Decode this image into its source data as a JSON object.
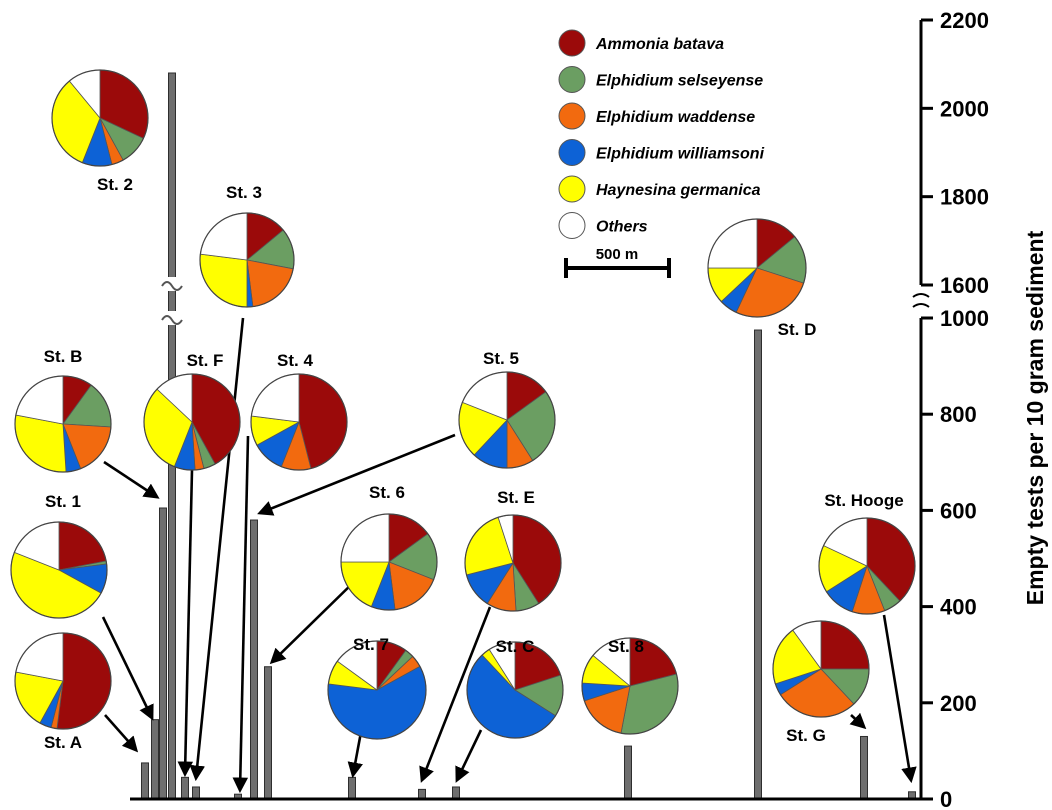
{
  "chart_data": {
    "type": "bar",
    "xlabel": "",
    "ylabel": "Empty tests per 10 gram sediment",
    "y_lower": {
      "range": [
        0,
        1000
      ],
      "ticks": [
        0,
        200,
        400,
        600,
        800,
        1000
      ]
    },
    "y_upper": {
      "range": [
        1600,
        2200
      ],
      "ticks": [
        1600,
        1800,
        2000,
        2200
      ]
    },
    "axis_break": [
      1000,
      1600
    ],
    "grid": false,
    "legend_position": "top-center",
    "legend": [
      {
        "name": "Ammonia batava",
        "color": "#9b0a0a"
      },
      {
        "name": "Elphidium selseyense",
        "color": "#6b9e62"
      },
      {
        "name": "Elphidium waddense",
        "color": "#f26a0f"
      },
      {
        "name": "Elphidium williamsoni",
        "color": "#0d62d6"
      },
      {
        "name": "Haynesina germanica",
        "color": "#ffff00"
      },
      {
        "name": "Others",
        "color": "#ffffff"
      }
    ],
    "scale_bar": "500 m",
    "bars": [
      {
        "station": "St. A",
        "value": 75
      },
      {
        "station": "St. 1",
        "value": 165
      },
      {
        "station": "St. B",
        "value": 605
      },
      {
        "station": "St. 2",
        "value": 2080
      },
      {
        "station": "St. F",
        "value": 45
      },
      {
        "station": "St. 3",
        "value": 25
      },
      {
        "station": "",
        "value": 10
      },
      {
        "station": "St. 4",
        "value": 580
      },
      {
        "station": "St. 6",
        "value": 275
      },
      {
        "station": "St. 7",
        "value": 45
      },
      {
        "station": "",
        "value": 20
      },
      {
        "station": "St. C",
        "value": 25
      },
      {
        "station": "St. 8",
        "value": 110
      },
      {
        "station": "St. D",
        "value": 975
      },
      {
        "station": "St. G",
        "value": 130
      },
      {
        "station": "St. Hooge",
        "value": 15
      }
    ],
    "stations": [
      {
        "label": "St. 2",
        "slices": [
          32,
          10,
          4,
          10,
          33,
          11
        ]
      },
      {
        "label": "St. 3",
        "slices": [
          14,
          14,
          20,
          2,
          27,
          23
        ]
      },
      {
        "label": "St. B",
        "slices": [
          10,
          16,
          18,
          5,
          29,
          22
        ]
      },
      {
        "label": "St. F",
        "slices": [
          42,
          4,
          3,
          7,
          31,
          13
        ]
      },
      {
        "label": "St. 4",
        "slices": [
          46,
          0,
          10,
          11,
          10,
          23
        ]
      },
      {
        "label": "St. 5",
        "slices": [
          15,
          26,
          9,
          12,
          19,
          19
        ]
      },
      {
        "label": "St. 1",
        "slices": [
          22,
          1,
          0,
          10,
          48,
          19
        ]
      },
      {
        "label": "St. A",
        "slices": [
          52,
          0,
          2,
          4,
          20,
          22
        ]
      },
      {
        "label": "St. 6",
        "slices": [
          15,
          16,
          17,
          8,
          19,
          25
        ]
      },
      {
        "label": "St. E",
        "slices": [
          41,
          8,
          10,
          12,
          24,
          5
        ]
      },
      {
        "label": "St. 7",
        "slices": [
          10,
          3,
          4,
          60,
          8,
          15
        ]
      },
      {
        "label": "St. C",
        "slices": [
          20,
          14,
          0,
          54,
          3,
          9
        ]
      },
      {
        "label": "St. 8",
        "slices": [
          21,
          32,
          17,
          6,
          10,
          14
        ]
      },
      {
        "label": "St. D",
        "slices": [
          14,
          16,
          27,
          6,
          12,
          25
        ]
      },
      {
        "label": "St. G",
        "slices": [
          25,
          13,
          28,
          4,
          20,
          10
        ]
      },
      {
        "label": "St. Hooge",
        "slices": [
          38,
          6,
          11,
          11,
          16,
          18
        ]
      }
    ]
  }
}
